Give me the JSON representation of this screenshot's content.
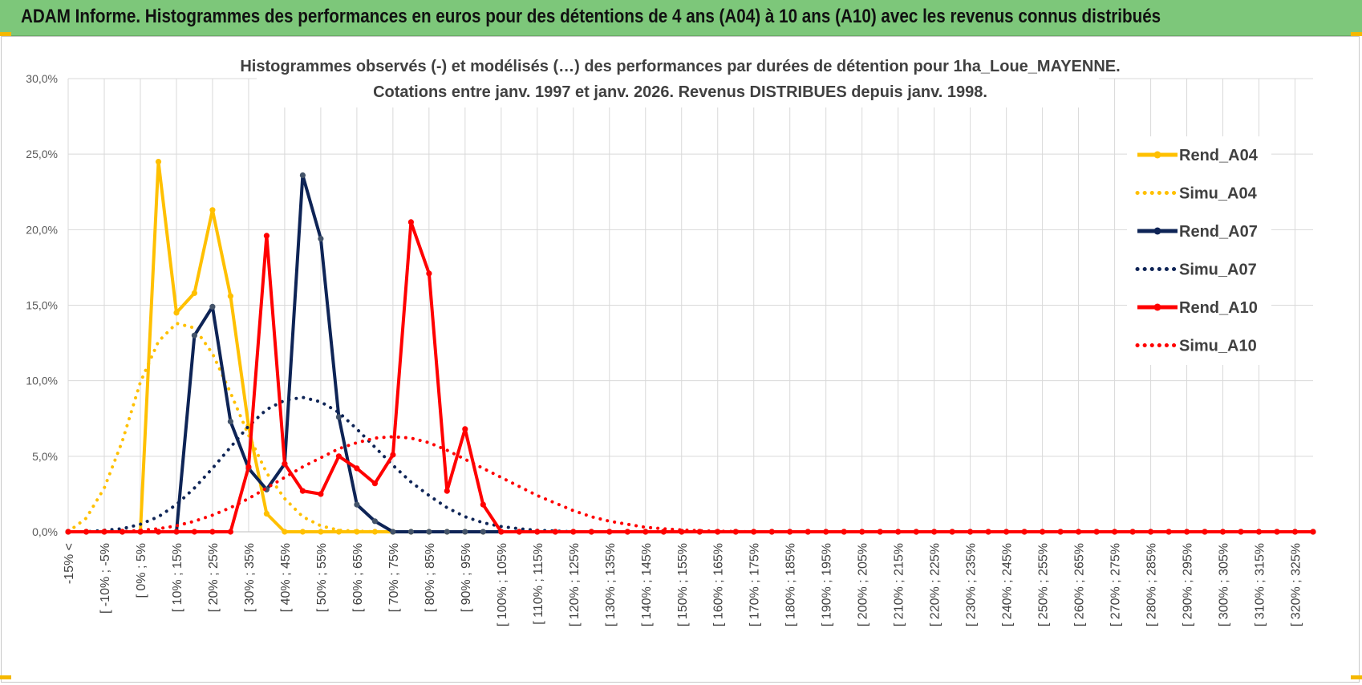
{
  "header": {
    "title": "ADAM Informe. Histogrammes des performances en euros pour des détentions de 4 ans (A04) à 10 ans (A10) avec les revenus connus distribués"
  },
  "colors": {
    "banner": "#7dc77a",
    "A04": "#ffc000",
    "A07": "#0e2456",
    "A10": "#ff0000",
    "grid": "#d9d9d9"
  },
  "chart_data": {
    "type": "line",
    "title_line1": "Histogrammes observés (-) et modélisés (…) des performances par durées de détention pour 1ha_Loue_MAYENNE.",
    "title_line2": "Cotations entre janv. 1997 et janv. 2026. Revenus DISTRIBUES depuis janv. 1998.",
    "ylim": [
      0,
      30
    ],
    "y_ticks": [
      "0,0%",
      "5,0%",
      "10,0%",
      "15,0%",
      "20,0%",
      "25,0%",
      "30,0%"
    ],
    "y_tick_values": [
      0,
      5,
      10,
      15,
      20,
      25,
      30
    ],
    "grid": true,
    "legend_position": "right",
    "x_labels": [
      "-15% <",
      "[ -10% ; -5%",
      "[ 0% ; 5%",
      "[ 10% ; 15%",
      "[ 20% ; 25%",
      "[ 30% ; 35%",
      "[ 40% ; 45%",
      "[ 50% ; 55%",
      "[ 60% ; 65%",
      "[ 70% ; 75%",
      "[ 80% ; 85%",
      "[ 90% ; 95%",
      "[ 100% ; 105%",
      "[ 110% ; 115%",
      "[ 120% ; 125%",
      "[ 130% ; 135%",
      "[ 140% ; 145%",
      "[ 150% ; 155%",
      "[ 160% ; 165%",
      "[ 170% ; 175%",
      "[ 180% ; 185%",
      "[ 190% ; 195%",
      "[ 200% ; 205%",
      "[ 210% ; 215%",
      "[ 220% ; 225%",
      "[ 230% ; 235%",
      "[ 240% ; 245%",
      "[ 250% ; 255%",
      "[ 260% ; 265%",
      "[ 270% ; 275%",
      "[ 280% ; 285%",
      "[ 290% ; 295%",
      "[ 300% ; 305%",
      "[ 310% ; 315%",
      "[ 320% ; 325%"
    ],
    "x_label_indices": [
      0,
      2,
      4,
      6,
      8,
      10,
      12,
      14,
      16,
      18,
      20,
      22,
      24,
      26,
      28,
      30,
      32,
      34,
      36,
      38,
      40,
      42,
      44,
      46,
      48,
      50,
      52,
      54,
      56,
      58,
      60,
      62,
      64,
      66,
      68
    ],
    "n_categories": 70,
    "series": [
      {
        "name": "Rend_A04",
        "style": "solid",
        "color": "#ffc000",
        "values": [
          0,
          0,
          0,
          0,
          0,
          24.5,
          14.5,
          15.8,
          21.3,
          15.6,
          7.0,
          1.2,
          0,
          0,
          0,
          0,
          0,
          0,
          0,
          0
        ]
      },
      {
        "name": "Simu_A04",
        "style": "dotted",
        "color": "#ffc000",
        "values": [
          0,
          0.9,
          2.9,
          6.0,
          9.9,
          12.6,
          13.8,
          13.5,
          11.8,
          9.2,
          6.4,
          3.9,
          2.2,
          1.0,
          0.4,
          0.1,
          0.05,
          0,
          0,
          0
        ]
      },
      {
        "name": "Rend_A07",
        "style": "solid",
        "color": "#0e2456",
        "values": [
          0,
          0,
          0,
          0,
          0,
          0,
          0,
          13.0,
          14.9,
          7.3,
          4.2,
          2.8,
          4.5,
          23.6,
          19.4,
          7.6,
          1.8,
          0.7,
          0,
          0,
          0,
          0,
          0,
          0,
          0,
          0
        ]
      },
      {
        "name": "Simu_A07",
        "style": "dotted",
        "color": "#0e2456",
        "values": [
          0,
          0,
          0.1,
          0.2,
          0.5,
          1.0,
          1.8,
          2.9,
          4.2,
          5.6,
          7.0,
          8.1,
          8.7,
          8.9,
          8.6,
          7.9,
          6.8,
          5.6,
          4.4,
          3.3,
          2.4,
          1.6,
          1.0,
          0.6,
          0.35,
          0.2,
          0.1,
          0.05,
          0,
          0,
          0,
          0
        ]
      },
      {
        "name": "Rend_A10",
        "style": "solid",
        "color": "#ff0000",
        "values": [
          0,
          0,
          0,
          0,
          0,
          0,
          0,
          0,
          0,
          0,
          4.3,
          19.6,
          4.5,
          2.7,
          2.5,
          5.0,
          4.2,
          3.2,
          5.1,
          20.5,
          17.1,
          2.7,
          6.8,
          1.8,
          0,
          0,
          0,
          0,
          0,
          0,
          0,
          0,
          0,
          0,
          0,
          0,
          0,
          0,
          0,
          0,
          0,
          0,
          0,
          0,
          0,
          0,
          0,
          0,
          0,
          0,
          0,
          0,
          0,
          0,
          0,
          0,
          0,
          0,
          0,
          0,
          0,
          0,
          0,
          0,
          0,
          0,
          0,
          0,
          0,
          0
        ]
      },
      {
        "name": "Simu_A10",
        "style": "dotted",
        "color": "#ff0000",
        "values": [
          0,
          0,
          0,
          0,
          0.1,
          0.2,
          0.4,
          0.7,
          1.1,
          1.6,
          2.2,
          2.9,
          3.6,
          4.3,
          4.9,
          5.5,
          5.9,
          6.2,
          6.3,
          6.2,
          5.9,
          5.4,
          4.8,
          4.2,
          3.6,
          3.0,
          2.4,
          1.9,
          1.4,
          1.0,
          0.7,
          0.5,
          0.3,
          0.2,
          0.12,
          0.07,
          0.04,
          0.02,
          0,
          0,
          0,
          0,
          0,
          0,
          0,
          0,
          0,
          0,
          0,
          0,
          0,
          0,
          0,
          0,
          0,
          0,
          0,
          0,
          0,
          0,
          0,
          0,
          0,
          0,
          0,
          0,
          0,
          0,
          0,
          0
        ]
      }
    ]
  }
}
